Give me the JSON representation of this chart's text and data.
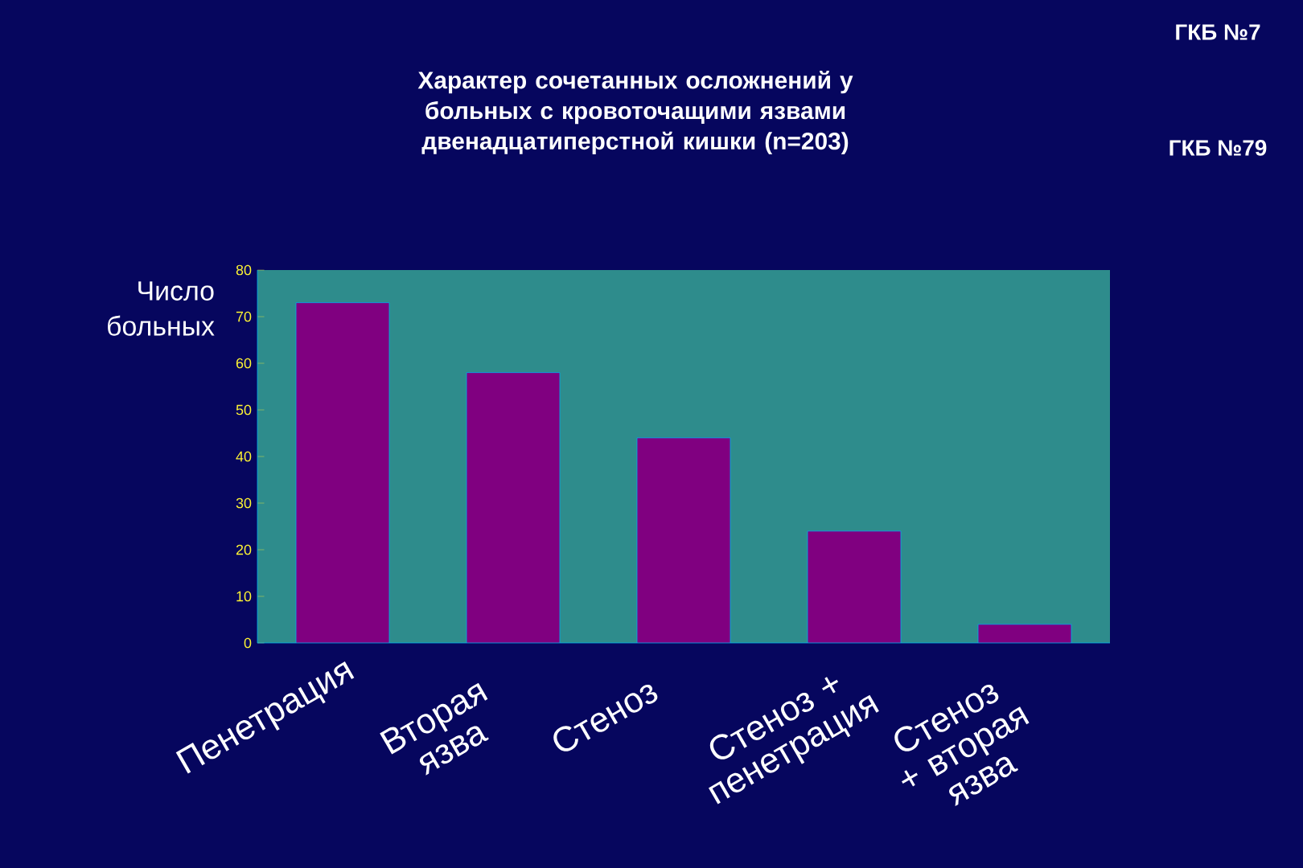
{
  "chart_data": {
    "type": "bar",
    "title": "Характер сочетанных осложнений у больных с кровоточащими язвами двенадцатиперстной кишки (n=203)",
    "ylabel": "Число больных",
    "categories": [
      "Пенетрация",
      "Вторая язва",
      "Стеноз",
      "Стеноз + пенетрация",
      "Стеноз + вторая язва"
    ],
    "values": [
      73,
      58,
      44,
      24,
      4
    ],
    "color": "#800080",
    "ylim": [
      0,
      80
    ],
    "yticks": [
      0,
      10,
      20,
      30,
      40,
      50,
      60,
      70,
      80
    ],
    "annotations": [
      "ГКБ №7",
      "ГКБ №79"
    ]
  }
}
